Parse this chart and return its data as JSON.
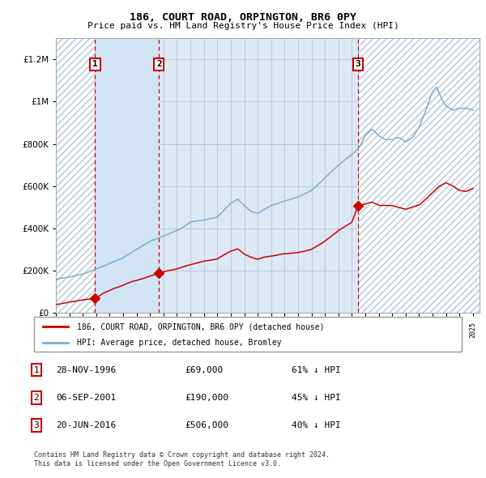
{
  "title": "186, COURT ROAD, ORPINGTON, BR6 0PY",
  "subtitle": "Price paid vs. HM Land Registry's House Price Index (HPI)",
  "sale_dates_numeric": [
    1996.917,
    2001.667,
    2016.458
  ],
  "sale_prices": [
    69000,
    190000,
    506000
  ],
  "sale_labels": [
    "1",
    "2",
    "3"
  ],
  "legend_line1": "186, COURT ROAD, ORPINGTON, BR6 0PY (detached house)",
  "legend_line2": "HPI: Average price, detached house, Bromley",
  "table_rows": [
    [
      "1",
      "28-NOV-1996",
      "£69,000",
      "61% ↓ HPI"
    ],
    [
      "2",
      "06-SEP-2001",
      "£190,000",
      "45% ↓ HPI"
    ],
    [
      "3",
      "20-JUN-2016",
      "£506,000",
      "40% ↓ HPI"
    ]
  ],
  "footnote1": "Contains HM Land Registry data © Crown copyright and database right 2024.",
  "footnote2": "This data is licensed under the Open Government Licence v3.0.",
  "hpi_color": "#7aadd4",
  "price_color": "#cc0000",
  "dashed_line_color": "#cc0000",
  "bg_color": "#dce9f5",
  "hatch_color": "#b0c4d8",
  "grid_color": "#b0bec5",
  "ylim": [
    0,
    1300000
  ],
  "xlim_start": 1994.0,
  "xlim_end": 2025.5,
  "hpi_keypoints_x": [
    1994.0,
    1995.0,
    1996.0,
    1997.0,
    1998.0,
    1999.0,
    2000.0,
    2001.0,
    2001.67,
    2002.0,
    2003.0,
    2004.0,
    2005.0,
    2006.0,
    2007.0,
    2007.5,
    2008.0,
    2008.5,
    2009.0,
    2009.5,
    2010.0,
    2011.0,
    2012.0,
    2013.0,
    2014.0,
    2015.0,
    2016.0,
    2016.5,
    2017.0,
    2017.5,
    2018.0,
    2018.5,
    2019.0,
    2019.5,
    2020.0,
    2020.5,
    2021.0,
    2021.5,
    2022.0,
    2022.3,
    2022.7,
    2023.0,
    2023.5,
    2024.0,
    2024.5,
    2025.0
  ],
  "hpi_keypoints_v": [
    158000,
    170000,
    185000,
    210000,
    235000,
    260000,
    300000,
    340000,
    355000,
    365000,
    390000,
    430000,
    440000,
    455000,
    520000,
    540000,
    510000,
    480000,
    470000,
    490000,
    510000,
    530000,
    550000,
    580000,
    640000,
    700000,
    750000,
    780000,
    840000,
    870000,
    840000,
    820000,
    820000,
    830000,
    810000,
    830000,
    880000,
    960000,
    1050000,
    1070000,
    1010000,
    980000,
    960000,
    970000,
    970000,
    960000
  ],
  "red_keypoints_x": [
    1994.0,
    1995.0,
    1996.0,
    1996.917,
    1997.5,
    1998.5,
    1999.5,
    2000.5,
    2001.667,
    2002.0,
    2003.0,
    2004.0,
    2005.0,
    2006.0,
    2007.0,
    2007.5,
    2008.0,
    2008.5,
    2009.0,
    2009.5,
    2010.0,
    2011.0,
    2012.0,
    2013.0,
    2014.0,
    2015.0,
    2016.0,
    2016.458,
    2017.0,
    2017.5,
    2018.0,
    2019.0,
    2020.0,
    2021.0,
    2022.0,
    2022.5,
    2023.0,
    2023.5,
    2024.0,
    2024.5,
    2025.0
  ],
  "red_keypoints_v": [
    42000,
    52000,
    62000,
    69000,
    95000,
    120000,
    145000,
    165000,
    190000,
    195000,
    210000,
    230000,
    245000,
    255000,
    295000,
    305000,
    280000,
    265000,
    255000,
    265000,
    270000,
    280000,
    285000,
    300000,
    340000,
    390000,
    430000,
    506000,
    515000,
    525000,
    510000,
    510000,
    490000,
    510000,
    570000,
    600000,
    615000,
    600000,
    580000,
    575000,
    590000
  ]
}
